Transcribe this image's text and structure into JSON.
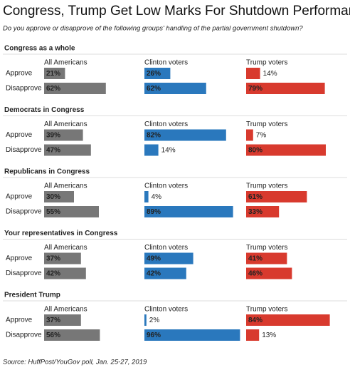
{
  "header": {
    "title": "Congress, Trump Get Low Marks For Shutdown Performance",
    "subtitle": "Do you approve or disapprove of the following groups' handling of the partial government shutdown?"
  },
  "source": "Source: HuffPost/YouGov poll, Jan. 25-27, 2019",
  "chart_data": [
    {
      "type": "bar",
      "title": "Congress as a whole",
      "categories": [
        "Approve",
        "Disapprove"
      ],
      "xlim": [
        0,
        100
      ],
      "series": [
        {
          "name": "All Americans",
          "color": "#777777",
          "values": [
            21,
            62
          ],
          "value_labels": [
            "21%",
            "62%"
          ]
        },
        {
          "name": "Clinton voters",
          "color": "#2a78bd",
          "values": [
            26,
            62
          ],
          "value_labels": [
            "26%",
            "62%"
          ]
        },
        {
          "name": "Trump voters",
          "color": "#d83a2e",
          "values": [
            14,
            79
          ],
          "value_labels": [
            "14%",
            "79%"
          ]
        }
      ]
    },
    {
      "type": "bar",
      "title": "Democrats in Congress",
      "categories": [
        "Approve",
        "Disapprove"
      ],
      "xlim": [
        0,
        100
      ],
      "series": [
        {
          "name": "All Americans",
          "color": "#777777",
          "values": [
            39,
            47
          ],
          "value_labels": [
            "39%",
            "47%"
          ]
        },
        {
          "name": "Clinton voters",
          "color": "#2a78bd",
          "values": [
            82,
            14
          ],
          "value_labels": [
            "82%",
            "14%"
          ]
        },
        {
          "name": "Trump voters",
          "color": "#d83a2e",
          "values": [
            7,
            80
          ],
          "value_labels": [
            "7%",
            "80%"
          ]
        }
      ]
    },
    {
      "type": "bar",
      "title": "Republicans in Congress",
      "categories": [
        "Approve",
        "Disapprove"
      ],
      "xlim": [
        0,
        100
      ],
      "series": [
        {
          "name": "All Americans",
          "color": "#777777",
          "values": [
            30,
            55
          ],
          "value_labels": [
            "30%",
            "55%"
          ]
        },
        {
          "name": "Clinton voters",
          "color": "#2a78bd",
          "values": [
            4,
            89
          ],
          "value_labels": [
            "4%",
            "89%"
          ]
        },
        {
          "name": "Trump voters",
          "color": "#d83a2e",
          "values": [
            61,
            33
          ],
          "value_labels": [
            "61%",
            "33%"
          ]
        }
      ]
    },
    {
      "type": "bar",
      "title": "Your representatives in Congress",
      "categories": [
        "Approve",
        "Disapprove"
      ],
      "xlim": [
        0,
        100
      ],
      "series": [
        {
          "name": "All Americans",
          "color": "#777777",
          "values": [
            37,
            42
          ],
          "value_labels": [
            "37%",
            "42%"
          ]
        },
        {
          "name": "Clinton voters",
          "color": "#2a78bd",
          "values": [
            49,
            42
          ],
          "value_labels": [
            "49%",
            "42%"
          ]
        },
        {
          "name": "Trump voters",
          "color": "#d83a2e",
          "values": [
            41,
            46
          ],
          "value_labels": [
            "41%",
            "46%"
          ]
        }
      ]
    },
    {
      "type": "bar",
      "title": "President Trump",
      "categories": [
        "Approve",
        "Disapprove"
      ],
      "xlim": [
        0,
        100
      ],
      "series": [
        {
          "name": "All Americans",
          "color": "#777777",
          "values": [
            37,
            56
          ],
          "value_labels": [
            "37%",
            "56%"
          ]
        },
        {
          "name": "Clinton voters",
          "color": "#2a78bd",
          "values": [
            2,
            96
          ],
          "value_labels": [
            "2%",
            "96%"
          ]
        },
        {
          "name": "Trump voters",
          "color": "#d83a2e",
          "values": [
            84,
            13
          ],
          "value_labels": [
            "84%",
            "13%"
          ]
        }
      ]
    }
  ]
}
